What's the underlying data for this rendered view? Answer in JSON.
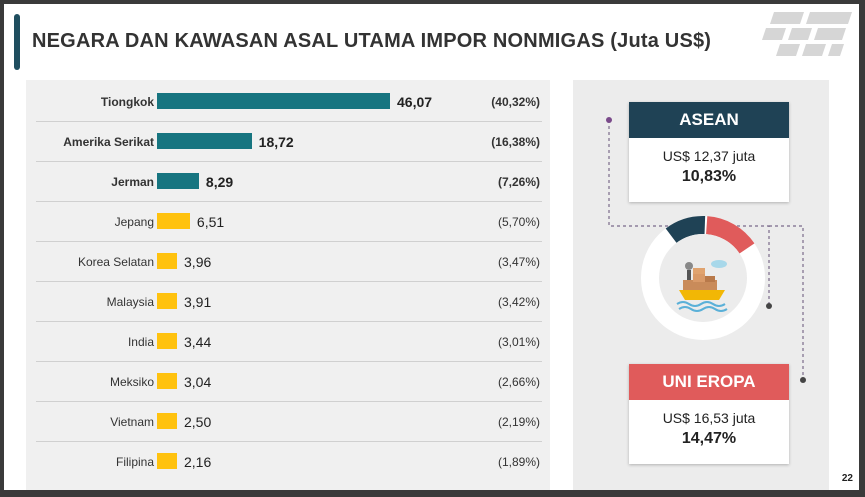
{
  "title": "NEGARA DAN KAWASAN ASAL UTAMA IMPOR NONMIGAS (Juta US$)",
  "page_number": "22",
  "colors": {
    "top3": "#177580",
    "others": "#ffc20e",
    "asean": "#1f4255",
    "eu": "#e05b5b"
  },
  "chart_data": {
    "type": "bar",
    "orientation": "horizontal",
    "categories": [
      "Tiongkok",
      "Amerika Serikat",
      "Jerman",
      "Jepang",
      "Korea Selatan",
      "Malaysia",
      "India",
      "Meksiko",
      "Vietnam",
      "Filipina"
    ],
    "values": [
      46.07,
      18.72,
      8.29,
      6.51,
      3.96,
      3.91,
      3.44,
      3.04,
      2.5,
      2.16
    ],
    "value_labels": [
      "46,07",
      "18,72",
      "8,29",
      "6,51",
      "3,96",
      "3,91",
      "3,44",
      "3,04",
      "2,50",
      "2,16"
    ],
    "shares": [
      "(40,32%)",
      "(16,38%)",
      "(7,26%)",
      "(5,70%)",
      "(3,47%)",
      "(3,42%)",
      "(3,01%)",
      "(2,66%)",
      "(2,19%)",
      "(1,89%)"
    ],
    "highlighted_top": 3
  },
  "asean": {
    "title": "ASEAN",
    "value": "US$ 12,37 juta",
    "share": "10,83%",
    "share_value": 10.83
  },
  "eu": {
    "title": "UNI EROPA",
    "value": "US$ 16,53 juta",
    "share": "14,47%",
    "share_value": 14.47
  }
}
